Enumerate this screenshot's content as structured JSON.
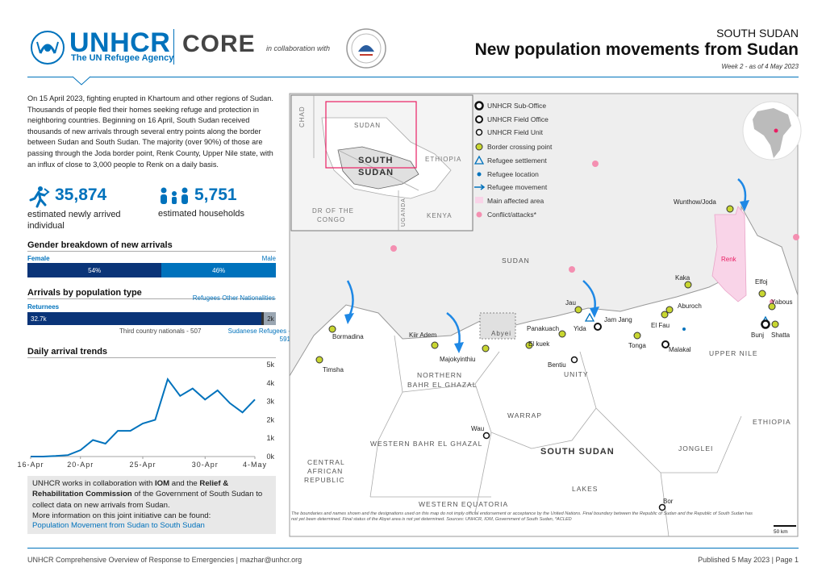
{
  "header": {
    "org_name": "UNHCR",
    "org_tagline": "The UN Refugee Agency",
    "core_label": "CORE",
    "collab_text": "in collaboration with",
    "country": "SOUTH SUDAN",
    "title": "New population movements from Sudan",
    "week": "Week 2 - as of 4 May 2023",
    "brand_color": "#0072bc"
  },
  "intro": "On 15 April 2023, fighting erupted in Khartoum and other regions of Sudan. Thousands of people fled their homes seeking refuge and protection in neighboring countries. Beginning on 16 April, South Sudan received thousands of new arrivals through several entry points along the border between Sudan and South Sudan. The majority (over 90%) of those are passing through the Joda border point, Renk County, Upper Nile state, with an influx of close to 3,000 people to Renk on a daily basis.",
  "stats": {
    "arrivals_value": "35,874",
    "arrivals_label": "estimated newly arrived individual",
    "households_value": "5,751",
    "households_label": "estimated households"
  },
  "gender": {
    "title": "Gender breakdown of new arrivals",
    "female_label": "Female",
    "male_label": "Male",
    "female_value": "54%",
    "male_value": "46%",
    "female_share": 0.54,
    "female_color": "#0a3478",
    "male_color": "#0072bc"
  },
  "population_type": {
    "title": "Arrivals by population type",
    "refugees_label": "Refugees Other Nationalities",
    "returnees_label": "Returnees",
    "returnees_value": "32.7k",
    "refugees_value": "2k",
    "returnees_count": 32700,
    "refugees_count": 2000,
    "third_country_count": 507,
    "sudanese_count": 591,
    "third_country_label": "Third country nationals - 507",
    "sudanese_label": "Sudanese Refugees - 591"
  },
  "daily": {
    "title": "Daily arrival trends"
  },
  "chart_data": {
    "type": "line",
    "x": [
      "16-Apr",
      "17-Apr",
      "18-Apr",
      "19-Apr",
      "20-Apr",
      "21-Apr",
      "22-Apr",
      "23-Apr",
      "24-Apr",
      "25-Apr",
      "26-Apr",
      "27-Apr",
      "28-Apr",
      "29-Apr",
      "30-Apr",
      "1-May",
      "2-May",
      "3-May",
      "4-May"
    ],
    "values": [
      0,
      0,
      30,
      80,
      350,
      900,
      700,
      1400,
      1400,
      1800,
      2000,
      4200,
      3300,
      3700,
      3100,
      3600,
      2900,
      2400,
      3100
    ],
    "x_tick_labels": [
      "16-Apr",
      "20-Apr",
      "25-Apr",
      "30-Apr",
      "4-May"
    ],
    "y_tick_labels": [
      "0k",
      "1k",
      "2k",
      "3k",
      "4k",
      "5k"
    ],
    "ylim": [
      0,
      5000
    ],
    "grid": false,
    "line_color": "#0072bc"
  },
  "note": {
    "text_pre": "UNHCR works in collaboration with ",
    "iom": "IOM",
    "text_mid": " and the ",
    "rrc": "Relief & Rehabilitation Commission",
    "text_post": " of the Government of South Sudan to collect data on new arrivals from Sudan.",
    "more_info": "More information on this joint initiative can be found:",
    "link": "Population Movement from Sudan to South Sudan"
  },
  "map": {
    "inset_labels": {
      "chad": "CHAD",
      "sudan": "SUDAN",
      "south_sudan": "SOUTH SUDAN",
      "ethiopia": "ETHIOPIA",
      "drc": "DR OF THE CONGO",
      "uganda": "UGANDA",
      "kenya": "KENYA"
    },
    "legend": {
      "sub_office": "UNHCR Sub-Office",
      "field_office": "UNHCR Field Office",
      "field_unit": "UNHCR Field Unit",
      "border_point": "Border crossing point",
      "settlement": "Refugee settlement",
      "refugee_location": "Refugee location",
      "movement": "Refugee movement",
      "main_area": "Main affected area",
      "conflict": "Conflict/attacks*"
    },
    "places": {
      "wunthow": "Wunthow/Joda",
      "renk": "Renk",
      "kaka": "Kaka",
      "elfoj": "Elfoj",
      "yabous": "Yabous",
      "aburoch": "Aburoch",
      "elfau": "El Fau",
      "bunj": "Bunj",
      "shatta": "Shatta",
      "jau": "Jau",
      "jamjang": "Jam Jang",
      "yida": "Yida",
      "panakuach": "Panakuach",
      "elkuek": "El kuek",
      "tonga": "Tonga",
      "malakal": "Malakal",
      "bentiu": "Bentiu",
      "kiiradem": "Kiir Adem",
      "majokyinthiu": "Majokyinthiu",
      "bormadina": "Bormadina",
      "timsha": "Timsha",
      "wau": "Wau",
      "bor": "Bor",
      "abyei": "Abyei"
    },
    "regions": {
      "sudan": "SUDAN",
      "upper_nile": "UPPER NILE",
      "unity": "UNITY",
      "nbeg": "NORTHERN BAHR EL GHAZAL",
      "warrap": "WARRAP",
      "wbeg": "WESTERN BAHR EL GHAZAL",
      "south_sudan": "SOUTH SUDAN",
      "jonglei": "JONGLEI",
      "car": "CENTRAL AFRICAN REPUBLIC",
      "ethiopia": "ETHIOPIA",
      "lakes": "LAKES",
      "we": "WESTERN EQUATORIA"
    },
    "disclaimer": "The boundaries and names shown and the designations used on this map do not imply official endorsement or acceptance by the United Nations. Final boundary between the Republic of Sudan and the Republic of South Sudan has not yet been determined. Final status of the Abyei area is not yet determined. Sources: UNHCR, IOM, Government of South Sudan, *ACLED",
    "scale": "50 km"
  },
  "footer": {
    "left": "UNHCR Comprehensive Overview of Response to Emergencies | mazhar@unhcr.org",
    "right": "Published 5 May 2023 | Page 1"
  }
}
